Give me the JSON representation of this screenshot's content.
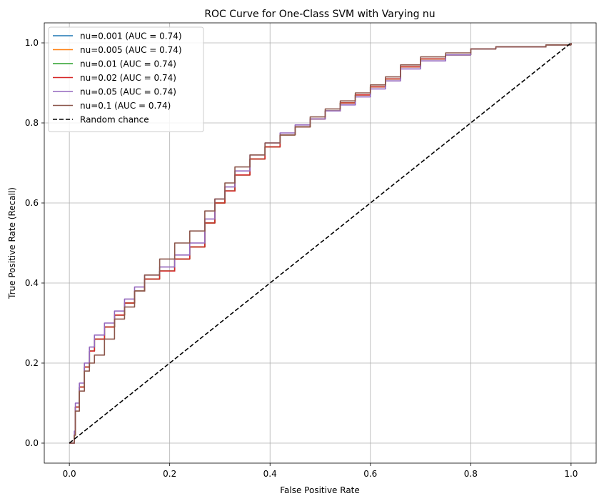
{
  "chart_data": {
    "type": "line",
    "title": "ROC Curve for One-Class SVM with Varying nu",
    "xlabel": "False Positive Rate",
    "ylabel": "True Positive Rate (Recall)",
    "xlim": [
      -0.05,
      1.05
    ],
    "ylim": [
      -0.05,
      1.05
    ],
    "xticks": [
      "0.0",
      "0.2",
      "0.4",
      "0.6",
      "0.8",
      "1.0"
    ],
    "yticks": [
      "0.0",
      "0.2",
      "0.4",
      "0.6",
      "0.8",
      "1.0"
    ],
    "grid": true,
    "legend_position": "top-left",
    "series": [
      {
        "name": "nu=0.001 (AUC = 0.74)",
        "color": "#1f77b4",
        "x": [
          0,
          0.01,
          0.012,
          0.02,
          0.03,
          0.04,
          0.05,
          0.07,
          0.09,
          0.11,
          0.13,
          0.15,
          0.18,
          0.21,
          0.24,
          0.27,
          0.29,
          0.31,
          0.33,
          0.36,
          0.39,
          0.42,
          0.45,
          0.48,
          0.51,
          0.54,
          0.57,
          0.6,
          0.63,
          0.66,
          0.7,
          0.75,
          0.8,
          0.85,
          0.9,
          0.95,
          1.0
        ],
        "y": [
          0,
          0.02,
          0.09,
          0.14,
          0.19,
          0.23,
          0.26,
          0.29,
          0.32,
          0.35,
          0.38,
          0.41,
          0.43,
          0.46,
          0.49,
          0.55,
          0.6,
          0.63,
          0.67,
          0.71,
          0.74,
          0.77,
          0.79,
          0.81,
          0.83,
          0.85,
          0.87,
          0.89,
          0.91,
          0.94,
          0.96,
          0.97,
          0.985,
          0.99,
          0.99,
          0.995,
          1.0
        ]
      },
      {
        "name": "nu=0.005 (AUC = 0.74)",
        "color": "#ff7f0e",
        "x": [
          0,
          0.01,
          0.012,
          0.02,
          0.03,
          0.04,
          0.05,
          0.07,
          0.09,
          0.11,
          0.13,
          0.15,
          0.18,
          0.21,
          0.24,
          0.27,
          0.29,
          0.31,
          0.33,
          0.36,
          0.39,
          0.42,
          0.45,
          0.48,
          0.51,
          0.54,
          0.57,
          0.6,
          0.63,
          0.66,
          0.7,
          0.75,
          0.8,
          0.85,
          0.9,
          0.95,
          1.0
        ],
        "y": [
          0,
          0.02,
          0.09,
          0.14,
          0.19,
          0.23,
          0.26,
          0.29,
          0.32,
          0.35,
          0.38,
          0.41,
          0.43,
          0.46,
          0.49,
          0.55,
          0.6,
          0.63,
          0.67,
          0.71,
          0.74,
          0.77,
          0.79,
          0.81,
          0.83,
          0.85,
          0.87,
          0.89,
          0.91,
          0.94,
          0.96,
          0.97,
          0.985,
          0.99,
          0.99,
          0.995,
          1.0
        ]
      },
      {
        "name": "nu=0.01 (AUC = 0.74)",
        "color": "#2ca02c",
        "x": [
          0,
          0.01,
          0.012,
          0.02,
          0.03,
          0.04,
          0.05,
          0.07,
          0.09,
          0.11,
          0.13,
          0.15,
          0.18,
          0.21,
          0.24,
          0.27,
          0.29,
          0.31,
          0.33,
          0.36,
          0.39,
          0.42,
          0.45,
          0.48,
          0.51,
          0.54,
          0.57,
          0.6,
          0.63,
          0.66,
          0.7,
          0.75,
          0.8,
          0.85,
          0.9,
          0.95,
          1.0
        ],
        "y": [
          0,
          0.02,
          0.09,
          0.14,
          0.19,
          0.23,
          0.26,
          0.29,
          0.32,
          0.35,
          0.38,
          0.41,
          0.43,
          0.46,
          0.49,
          0.55,
          0.6,
          0.63,
          0.67,
          0.71,
          0.74,
          0.77,
          0.79,
          0.81,
          0.83,
          0.85,
          0.87,
          0.89,
          0.91,
          0.94,
          0.96,
          0.97,
          0.985,
          0.99,
          0.99,
          0.995,
          1.0
        ]
      },
      {
        "name": "nu=0.02 (AUC = 0.74)",
        "color": "#d62728",
        "x": [
          0,
          0.01,
          0.012,
          0.02,
          0.03,
          0.04,
          0.05,
          0.07,
          0.09,
          0.11,
          0.13,
          0.15,
          0.18,
          0.21,
          0.24,
          0.27,
          0.29,
          0.31,
          0.33,
          0.36,
          0.39,
          0.42,
          0.45,
          0.48,
          0.51,
          0.54,
          0.57,
          0.6,
          0.63,
          0.66,
          0.7,
          0.75,
          0.8,
          0.85,
          0.9,
          0.95,
          1.0
        ],
        "y": [
          0,
          0.02,
          0.09,
          0.14,
          0.19,
          0.23,
          0.26,
          0.29,
          0.32,
          0.35,
          0.38,
          0.41,
          0.43,
          0.46,
          0.49,
          0.55,
          0.6,
          0.63,
          0.67,
          0.71,
          0.74,
          0.77,
          0.79,
          0.81,
          0.83,
          0.85,
          0.87,
          0.89,
          0.91,
          0.94,
          0.96,
          0.97,
          0.985,
          0.99,
          0.99,
          0.995,
          1.0
        ]
      },
      {
        "name": "nu=0.05 (AUC = 0.74)",
        "color": "#9467bd",
        "x": [
          0,
          0.01,
          0.012,
          0.02,
          0.03,
          0.04,
          0.05,
          0.07,
          0.09,
          0.11,
          0.13,
          0.15,
          0.18,
          0.21,
          0.24,
          0.27,
          0.29,
          0.31,
          0.33,
          0.36,
          0.39,
          0.42,
          0.45,
          0.48,
          0.51,
          0.54,
          0.57,
          0.6,
          0.63,
          0.66,
          0.7,
          0.75,
          0.8,
          0.85,
          0.9,
          0.95,
          1.0
        ],
        "y": [
          0,
          0.03,
          0.1,
          0.15,
          0.2,
          0.24,
          0.27,
          0.3,
          0.33,
          0.36,
          0.39,
          0.42,
          0.44,
          0.47,
          0.5,
          0.56,
          0.61,
          0.64,
          0.68,
          0.72,
          0.75,
          0.775,
          0.795,
          0.81,
          0.83,
          0.845,
          0.865,
          0.885,
          0.905,
          0.935,
          0.955,
          0.97,
          0.985,
          0.99,
          0.99,
          0.995,
          1.0
        ]
      },
      {
        "name": "nu=0.1 (AUC = 0.74)",
        "color": "#8c564b",
        "x": [
          0,
          0.01,
          0.012,
          0.02,
          0.03,
          0.04,
          0.05,
          0.07,
          0.09,
          0.11,
          0.13,
          0.15,
          0.18,
          0.21,
          0.24,
          0.27,
          0.29,
          0.31,
          0.33,
          0.36,
          0.39,
          0.42,
          0.45,
          0.48,
          0.51,
          0.54,
          0.57,
          0.6,
          0.63,
          0.66,
          0.7,
          0.75,
          0.8,
          0.85,
          0.9,
          0.95,
          1.0
        ],
        "y": [
          0,
          0.02,
          0.08,
          0.13,
          0.18,
          0.2,
          0.22,
          0.26,
          0.31,
          0.34,
          0.38,
          0.42,
          0.46,
          0.5,
          0.53,
          0.58,
          0.61,
          0.65,
          0.69,
          0.72,
          0.75,
          0.77,
          0.79,
          0.815,
          0.835,
          0.855,
          0.875,
          0.895,
          0.915,
          0.945,
          0.965,
          0.975,
          0.985,
          0.99,
          0.99,
          0.995,
          1.0
        ]
      },
      {
        "name": "Random chance",
        "color": "#000000",
        "dashed": true,
        "x": [
          0,
          1
        ],
        "y": [
          0,
          1
        ]
      }
    ]
  }
}
